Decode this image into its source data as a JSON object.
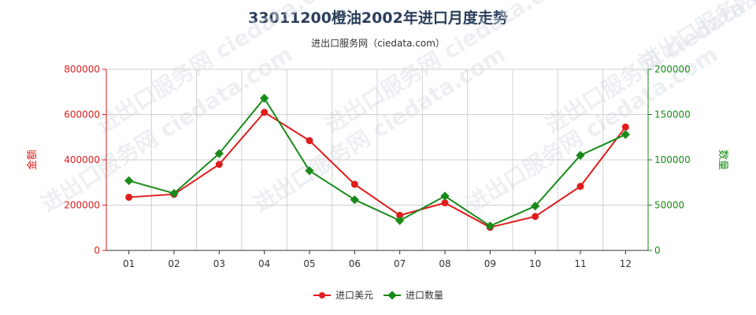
{
  "title": "33011200橙油2002年进口月度走势",
  "subtitle": "进出口服务网（ciedata.com）",
  "watermark": "进出口服务网 ciedata.com",
  "chart_data": {
    "type": "line",
    "categories": [
      "01",
      "02",
      "03",
      "04",
      "05",
      "06",
      "07",
      "08",
      "09",
      "10",
      "11",
      "12"
    ],
    "series": [
      {
        "name": "进口美元",
        "axis": "left",
        "color": "#e01c1c",
        "values": [
          235000,
          248000,
          380000,
          610000,
          485000,
          292000,
          155000,
          210000,
          102000,
          150000,
          283000,
          545000
        ]
      },
      {
        "name": "进口数量",
        "axis": "right",
        "color": "#1a8a1a",
        "values": [
          77000,
          63000,
          107000,
          168000,
          88000,
          56000,
          33000,
          60000,
          27000,
          49000,
          105000,
          128000
        ]
      }
    ],
    "y_left": {
      "label": "金额",
      "min": 0,
      "max": 800000,
      "ticks": [
        0,
        200000,
        400000,
        600000,
        800000
      ]
    },
    "y_right": {
      "label": "数量",
      "min": 0,
      "max": 200000,
      "ticks": [
        0,
        50000,
        100000,
        150000,
        200000
      ]
    },
    "grid": true,
    "legend": "bottom-center"
  }
}
